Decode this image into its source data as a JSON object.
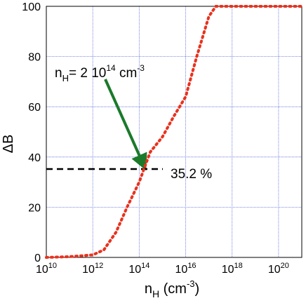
{
  "chart_data": {
    "type": "line",
    "y_label": "ΔB",
    "x_label_parts": [
      "n",
      "H",
      " (cm",
      "-3",
      ")"
    ],
    "x": [
      10000000000.0,
      100000000000.0,
      1000000000000.0,
      3000000000000.0,
      10000000000000.0,
      30000000000000.0,
      100000000000000.0,
      160000000000000.0,
      300000000000000.0,
      1000000000000000.0,
      3000000000000000.0,
      1e+16,
      3e+16,
      1e+17,
      2e+17,
      1e+18,
      1e+19,
      1e+20,
      1e+21
    ],
    "series": [
      {
        "color": "#e8321e",
        "values": [
          0,
          0.3,
          1,
          3,
          10,
          20,
          30,
          35.2,
          42,
          48,
          56,
          64,
          80,
          96,
          100,
          100,
          100,
          100,
          100
        ]
      }
    ],
    "xscale": "log",
    "xlim": [
      10000000000.0,
      1e+21
    ],
    "ylim": [
      0,
      100
    ],
    "yticks": [
      0,
      20,
      40,
      60,
      80,
      100
    ],
    "xticks": [
      {
        "value": 10000000000.0,
        "label": "10",
        "exponent": "10"
      },
      {
        "value": 1000000000000.0,
        "label": "10",
        "exponent": "12"
      },
      {
        "value": 100000000000000.0,
        "label": "10",
        "exponent": "14"
      },
      {
        "value": 1e+16,
        "label": "10",
        "exponent": "16"
      },
      {
        "value": 1e+18,
        "label": "10",
        "exponent": "18"
      },
      {
        "value": 1e+20,
        "label": "10",
        "exponent": "20"
      }
    ],
    "grid": true,
    "reference_line": {
      "value": 35.2,
      "label": "35.2 %"
    },
    "annotation_parts": [
      "n",
      "H",
      "= 2 10",
      "14",
      " cm",
      "-3"
    ]
  }
}
